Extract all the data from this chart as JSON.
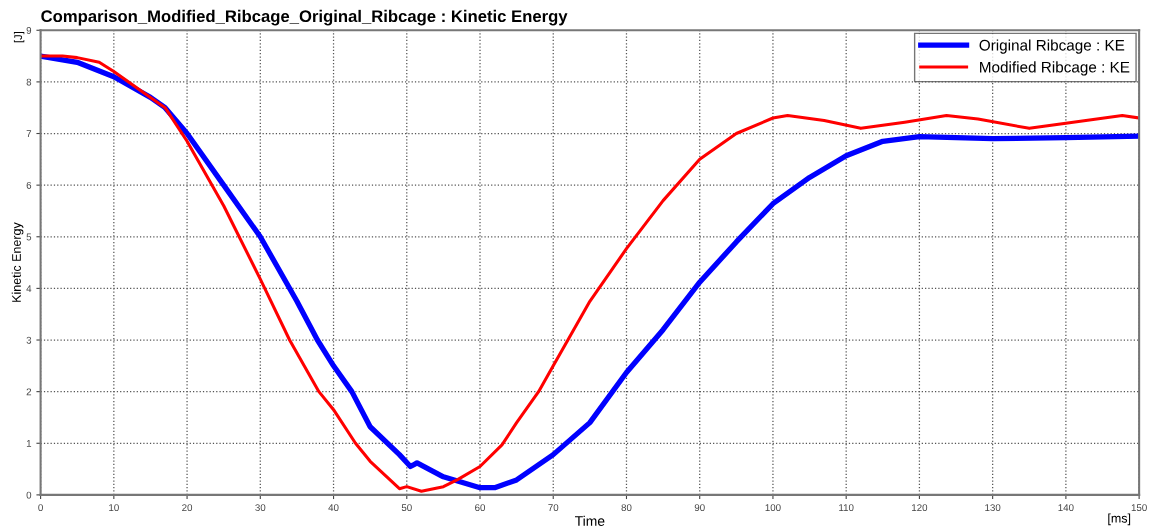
{
  "chart_data": {
    "type": "line",
    "title": "Comparison_Modified_Ribcage_Original_Ribcage : Kinetic Energy",
    "xlabel": "Time",
    "ylabel": "Kinetic Energy",
    "annotations": [
      "[J]",
      "[ms]"
    ],
    "xlim": [
      0,
      150
    ],
    "ylim": [
      0,
      9
    ],
    "xticks": [
      0,
      10,
      20,
      30,
      40,
      50,
      60,
      70,
      80,
      90,
      100,
      110,
      120,
      130,
      140,
      150
    ],
    "yticks": [
      0,
      1,
      2,
      3,
      4,
      5,
      6,
      7,
      8,
      9
    ],
    "grid": true,
    "legend": "top right",
    "marker": "none",
    "line_style": "solid",
    "series": [
      {
        "name": "Original Ribcage : KE",
        "color": "#0000ff",
        "x": [
          0,
          5,
          10,
          15,
          17,
          20,
          25,
          30,
          35,
          37.8,
          40,
          42.5,
          45,
          49,
          50.5,
          50.9,
          51.4,
          55,
          60,
          62,
          65,
          70,
          75,
          80,
          85,
          90,
          95,
          100,
          105,
          110,
          115,
          120,
          130,
          140,
          150
        ],
        "values": [
          8.5,
          8.38,
          8.1,
          7.7,
          7.5,
          7.0,
          6.0,
          5.0,
          3.75,
          3.0,
          2.5,
          2.0,
          1.32,
          0.78,
          0.55,
          0.58,
          0.62,
          0.35,
          0.14,
          0.14,
          0.29,
          0.78,
          1.4,
          2.37,
          3.2,
          4.12,
          4.9,
          5.64,
          6.15,
          6.57,
          6.85,
          6.94,
          6.9,
          6.92,
          6.95
        ]
      },
      {
        "name": "Modified Ribcage : KE",
        "color": "#ff0000",
        "x": [
          0,
          3,
          5,
          8,
          10,
          15,
          17,
          20,
          25,
          30,
          34,
          38,
          40,
          43,
          45,
          49,
          50,
          52,
          55,
          57,
          60,
          63,
          65,
          68,
          70,
          72,
          75,
          80,
          85,
          90,
          95,
          100,
          102,
          107,
          112,
          118,
          123.7,
          128,
          135,
          140,
          147.7,
          150
        ],
        "values": [
          8.5,
          8.5,
          8.47,
          8.38,
          8.2,
          7.7,
          7.5,
          6.85,
          5.6,
          4.18,
          3.0,
          2.0,
          1.65,
          1.0,
          0.65,
          0.12,
          0.16,
          0.07,
          0.16,
          0.3,
          0.55,
          0.97,
          1.4,
          2.0,
          2.5,
          3.0,
          3.75,
          4.77,
          5.7,
          6.5,
          7.0,
          7.3,
          7.35,
          7.25,
          7.1,
          7.22,
          7.35,
          7.28,
          7.1,
          7.2,
          7.35,
          7.3
        ]
      }
    ]
  }
}
